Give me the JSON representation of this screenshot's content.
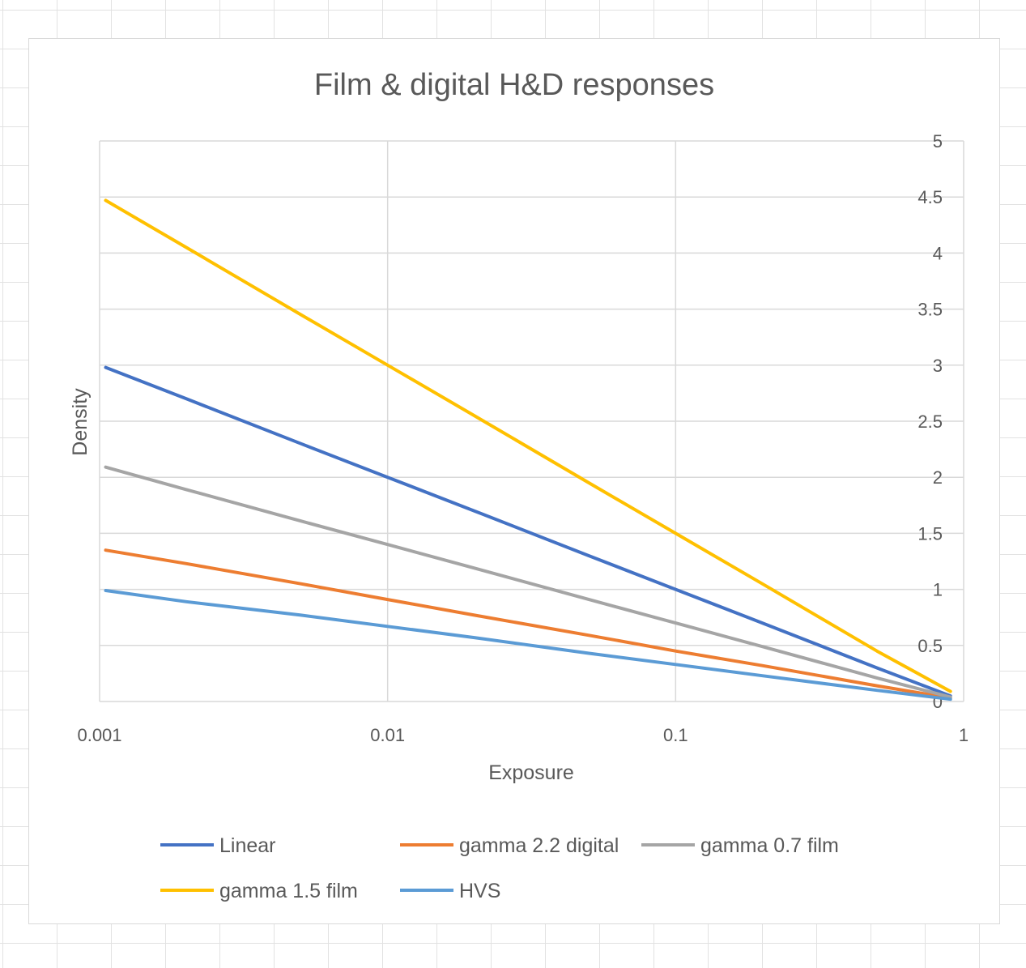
{
  "chart_data": {
    "type": "line",
    "title": "Film & digital H&D responses",
    "xlabel": "Exposure",
    "ylabel": "Density",
    "x_scale": "log",
    "xlim": [
      0.001,
      1
    ],
    "ylim": [
      0,
      5
    ],
    "x_ticks": [
      "0.001",
      "0.01",
      "0.1",
      "1"
    ],
    "y_ticks": [
      "0",
      "0.5",
      "1",
      "1.5",
      "2",
      "2.5",
      "3",
      "3.5",
      "4",
      "4.5",
      "5"
    ],
    "y_axis_side": "right",
    "grid": true,
    "legend_position": "bottom",
    "x": [
      0.00105,
      0.002,
      0.005,
      0.01,
      0.02,
      0.05,
      0.1,
      0.2,
      0.5,
      0.9
    ],
    "series": [
      {
        "name": "Linear",
        "color": "#4472C4",
        "values": [
          2.98,
          2.7,
          2.3,
          2.0,
          1.7,
          1.3,
          1.0,
          0.7,
          0.3,
          0.05
        ]
      },
      {
        "name": "gamma 2.2 digital",
        "color": "#ED7D31",
        "values": [
          1.35,
          1.23,
          1.05,
          0.91,
          0.77,
          0.59,
          0.45,
          0.32,
          0.14,
          0.03
        ]
      },
      {
        "name": "gamma 0.7 film",
        "color": "#A5A5A5",
        "values": [
          2.09,
          1.89,
          1.61,
          1.4,
          1.19,
          0.91,
          0.7,
          0.49,
          0.21,
          0.04
        ]
      },
      {
        "name": "gamma 1.5 film",
        "color": "#FFC000",
        "values": [
          4.47,
          4.05,
          3.45,
          3.0,
          2.55,
          1.95,
          1.5,
          1.05,
          0.45,
          0.09
        ]
      },
      {
        "name": "HVS",
        "color": "#5B9BD5",
        "values": [
          0.99,
          0.89,
          0.77,
          0.67,
          0.57,
          0.43,
          0.33,
          0.23,
          0.1,
          0.02
        ]
      }
    ]
  }
}
